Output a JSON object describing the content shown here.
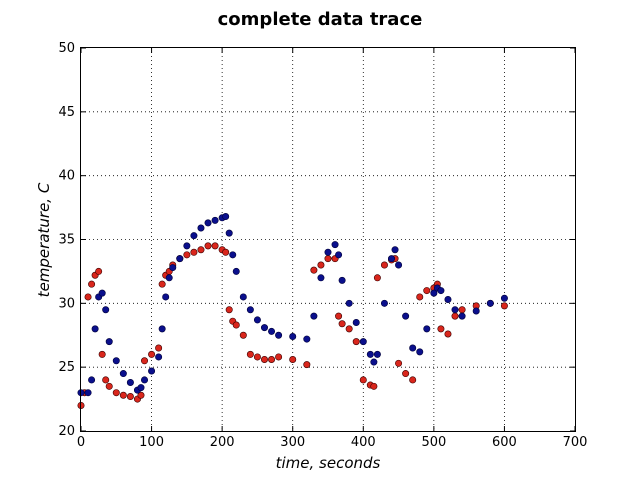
{
  "chart_data": {
    "type": "scatter",
    "title": "complete data trace",
    "xlabel": "time, seconds",
    "ylabel": "temperature, C",
    "xlim": [
      0,
      700
    ],
    "ylim": [
      20,
      50
    ],
    "xticks": [
      0,
      100,
      200,
      300,
      400,
      500,
      600,
      700
    ],
    "yticks": [
      20,
      25,
      30,
      35,
      40,
      45,
      50
    ],
    "grid": true,
    "series": [
      {
        "color": "#0a0f8c",
        "edge": "#00003a",
        "x": [
          0,
          10,
          15,
          20,
          25,
          30,
          35,
          40,
          50,
          60,
          70,
          80,
          85,
          90,
          100,
          110,
          115,
          120,
          125,
          130,
          140,
          150,
          160,
          170,
          180,
          190,
          200,
          205,
          210,
          215,
          220,
          230,
          240,
          250,
          260,
          270,
          280,
          300,
          320,
          330,
          340,
          350,
          360,
          365,
          370,
          380,
          390,
          400,
          410,
          415,
          420,
          430,
          440,
          445,
          450,
          460,
          470,
          480,
          490,
          500,
          505,
          510,
          520,
          530,
          540,
          560,
          580,
          600
        ],
        "y": [
          23,
          23,
          24,
          28,
          30.5,
          30.8,
          29.5,
          27,
          25.5,
          24.5,
          23.8,
          23.2,
          23.4,
          24,
          24.7,
          25.8,
          28,
          30.5,
          32,
          32.8,
          33.5,
          34.5,
          35.3,
          35.9,
          36.3,
          36.5,
          36.7,
          36.8,
          35.5,
          33.8,
          32.5,
          30.5,
          29.5,
          28.7,
          28.1,
          27.8,
          27.5,
          27.4,
          27.2,
          29,
          32,
          34,
          34.6,
          33.8,
          31.8,
          30,
          28.5,
          27,
          26,
          25.4,
          26,
          30,
          33.5,
          34.2,
          33,
          29,
          26.5,
          26.2,
          28,
          30.8,
          31.2,
          31,
          30.3,
          29.5,
          29,
          29.4,
          30,
          30.4
        ]
      },
      {
        "color": "#d9261c",
        "edge": "#3a0000",
        "x": [
          0,
          5,
          10,
          15,
          20,
          25,
          30,
          35,
          40,
          50,
          60,
          70,
          80,
          85,
          90,
          100,
          110,
          115,
          120,
          125,
          130,
          140,
          150,
          160,
          170,
          180,
          190,
          200,
          205,
          210,
          215,
          220,
          230,
          240,
          250,
          260,
          270,
          280,
          300,
          320,
          330,
          340,
          350,
          360,
          365,
          370,
          380,
          390,
          400,
          410,
          415,
          420,
          430,
          440,
          445,
          450,
          460,
          470,
          480,
          490,
          500,
          505,
          510,
          520,
          530,
          540,
          560,
          580,
          600
        ],
        "y": [
          22,
          23,
          30.5,
          31.5,
          32.2,
          32.5,
          26,
          24,
          23.5,
          23,
          22.8,
          22.7,
          22.5,
          22.8,
          25.5,
          26,
          26.5,
          31.5,
          32.2,
          32.5,
          33,
          33.5,
          33.8,
          34,
          34.2,
          34.5,
          34.5,
          34.2,
          34,
          29.5,
          28.6,
          28.3,
          27.5,
          26,
          25.8,
          25.6,
          25.6,
          25.8,
          25.6,
          25.2,
          32.6,
          33,
          33.5,
          33.5,
          29,
          28.4,
          28,
          27,
          24,
          23.6,
          23.5,
          32,
          33,
          33.4,
          33.5,
          25.3,
          24.5,
          24,
          30.5,
          31,
          31.2,
          31.5,
          28,
          27.6,
          29,
          29.5,
          29.8,
          30,
          29.8
        ]
      }
    ]
  }
}
